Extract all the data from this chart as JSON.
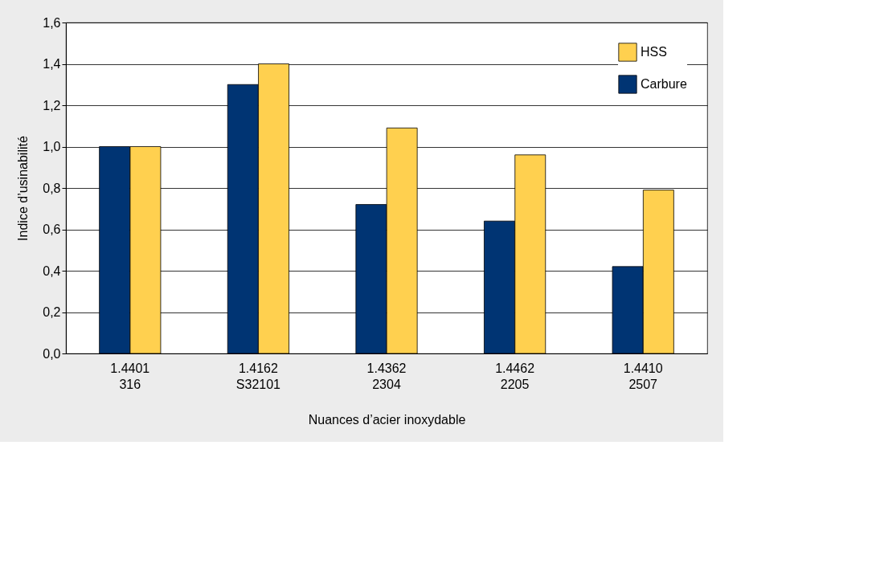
{
  "chart_data": {
    "type": "bar",
    "xlabel": "Nuances d’acier inoxydable",
    "ylabel": "Indice d’usinabilité",
    "categories": [
      "1.4401\n316",
      "1.4162\nS32101",
      "1.4362\n2304",
      "1.4462\n2205",
      "1.4410\n2507"
    ],
    "series": [
      {
        "name": "Carbure",
        "color": "#003473",
        "values": [
          1.0,
          1.3,
          0.72,
          0.64,
          0.42
        ]
      },
      {
        "name": "HSS",
        "color": "#ffd04f",
        "values": [
          1.0,
          1.4,
          1.09,
          0.96,
          0.79
        ]
      }
    ],
    "ylim": [
      0,
      1.6
    ],
    "yticks": [
      {
        "value": 0,
        "label": "0,0"
      },
      {
        "value": 0.2,
        "label": "0,2"
      },
      {
        "value": 0.4,
        "label": "0,4"
      },
      {
        "value": 0.6,
        "label": "0,6"
      },
      {
        "value": 0.8,
        "label": "0,8"
      },
      {
        "value": 1.0,
        "label": "1,0"
      },
      {
        "value": 1.2,
        "label": "1,2"
      },
      {
        "value": 1.4,
        "label": "1,4"
      },
      {
        "value": 1.6,
        "label": "1,6"
      }
    ],
    "grid": "y",
    "legend": "top right"
  }
}
